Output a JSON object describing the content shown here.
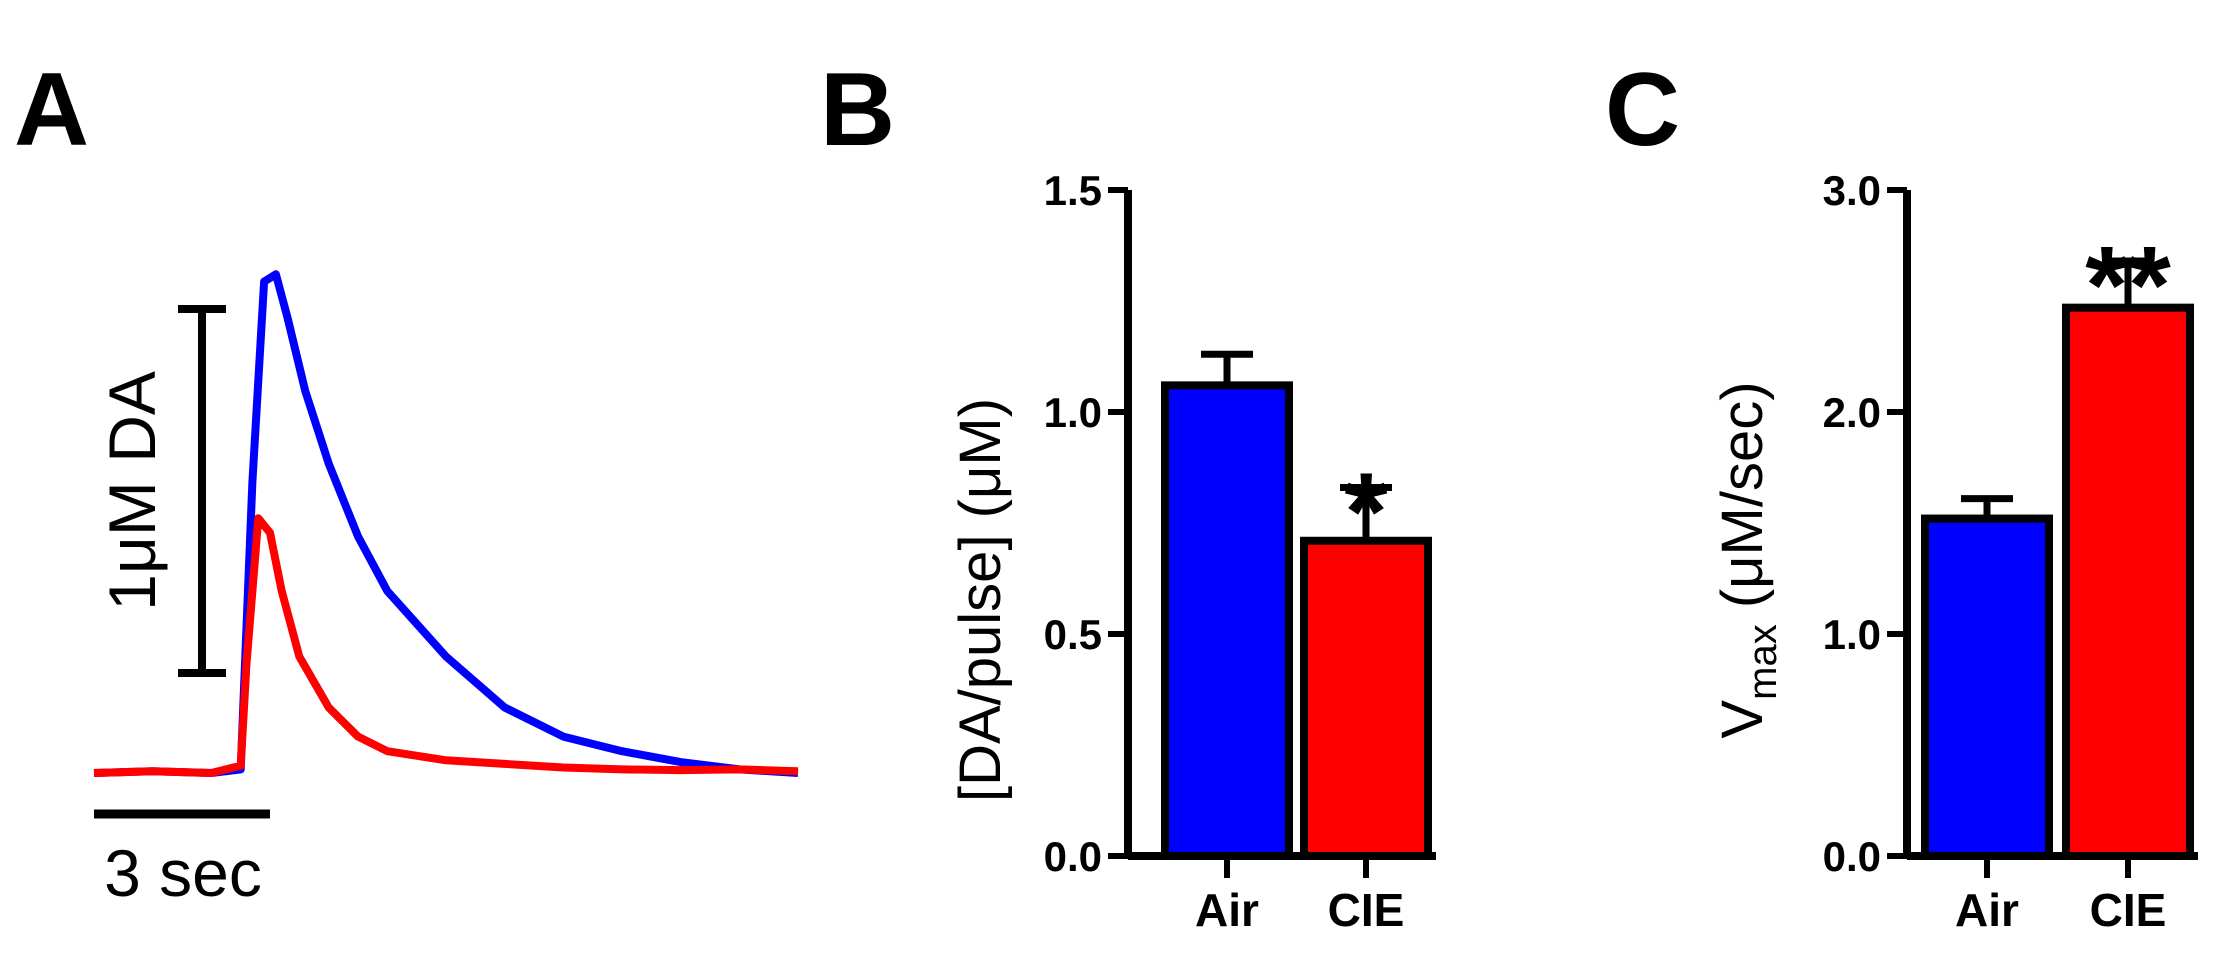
{
  "colors": {
    "air": "#0000ff",
    "cie": "#ff0000",
    "axis": "#000000"
  },
  "panels": {
    "a": "A",
    "b": "B",
    "c": "C"
  },
  "chart_data": [
    {
      "panel": "A",
      "type": "line",
      "title": "",
      "scale_bars": {
        "x_label": "3 sec",
        "y_label": "1μM DA",
        "x_value_sec": 3,
        "y_value_uM": 1
      },
      "series": [
        {
          "color": "#0000ff",
          "x": [
            0,
            1,
            2,
            2.5,
            2.7,
            2.9,
            3.1,
            3.3,
            3.6,
            4,
            4.5,
            5,
            6,
            7,
            8,
            9,
            10,
            11,
            12
          ],
          "y": [
            0,
            0.005,
            0,
            0.01,
            0.8,
            1.35,
            1.37,
            1.25,
            1.05,
            0.85,
            0.65,
            0.5,
            0.32,
            0.18,
            0.1,
            0.06,
            0.03,
            0.01,
            0
          ]
        },
        {
          "color": "#ff0000",
          "x": [
            0,
            1,
            2,
            2.5,
            2.6,
            2.8,
            3,
            3.2,
            3.5,
            4,
            4.5,
            5,
            6,
            7,
            8,
            9,
            10,
            11,
            12
          ],
          "y": [
            0,
            0.005,
            0,
            0.02,
            0.3,
            0.7,
            0.66,
            0.5,
            0.32,
            0.18,
            0.1,
            0.06,
            0.035,
            0.025,
            0.015,
            0.01,
            0.008,
            0.01,
            0.005
          ]
        }
      ]
    },
    {
      "panel": "B",
      "type": "bar",
      "title": "",
      "categories": [
        "Air",
        "CIE"
      ],
      "values": [
        1.06,
        0.71
      ],
      "errors": [
        0.07,
        0.12
      ],
      "colors": [
        "#0000ff",
        "#ff0000"
      ],
      "significance": [
        "",
        "*"
      ],
      "ylabel": "[DA/pulse] (μM)",
      "ylim": [
        0,
        1.5
      ],
      "yticks": [
        "0.0",
        "0.5",
        "1.0",
        "1.5"
      ]
    },
    {
      "panel": "C",
      "type": "bar",
      "title": "",
      "categories": [
        "Air",
        "CIE"
      ],
      "values": [
        1.52,
        2.47
      ],
      "errors": [
        0.09,
        0.21
      ],
      "colors": [
        "#0000ff",
        "#ff0000"
      ],
      "significance": [
        "",
        "**"
      ],
      "ylabel_main": "V",
      "ylabel_sub": "max",
      "ylabel_rest": " (μM/sec)",
      "ylim": [
        0,
        3.0
      ],
      "yticks": [
        "0.0",
        "1.0",
        "2.0",
        "3.0"
      ]
    }
  ]
}
